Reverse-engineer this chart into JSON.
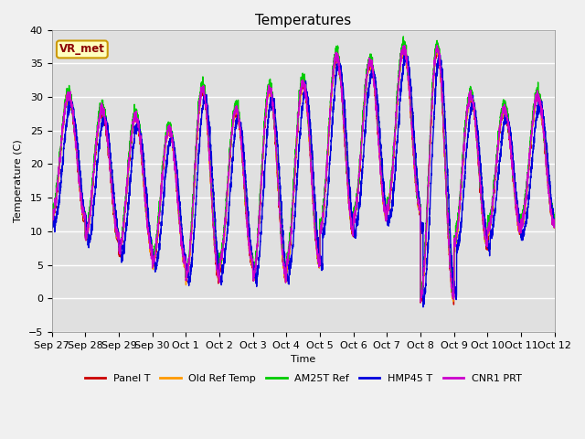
{
  "title": "Temperatures",
  "xlabel": "Time",
  "ylabel": "Temperature (C)",
  "ylim": [
    -5,
    40
  ],
  "annotation": "VR_met",
  "fig_bg": "#f0f0f0",
  "plot_bg": "#e0e0e0",
  "series_names": [
    "Panel T",
    "Old Ref Temp",
    "AM25T Ref",
    "HMP45 T",
    "CNR1 PRT"
  ],
  "series_colors": [
    "#cc0000",
    "#ff9900",
    "#00cc00",
    "#0000dd",
    "#cc00cc"
  ],
  "series_lw": [
    1.0,
    1.0,
    1.0,
    1.0,
    1.0
  ],
  "x_tick_labels": [
    "Sep 27",
    "Sep 28",
    "Sep 29",
    "Sep 30",
    "Oct 1",
    "Oct 2",
    "Oct 3",
    "Oct 4",
    "Oct 5",
    "Oct 6",
    "Oct 7",
    "Oct 8",
    "Oct 9",
    "Oct 10",
    "Oct 11",
    "Oct 12"
  ],
  "yticks": [
    -5,
    0,
    5,
    10,
    15,
    20,
    25,
    30,
    35,
    40
  ],
  "day_peaks": [
    30,
    28,
    27,
    25,
    31,
    28,
    31,
    32,
    36,
    35,
    37,
    37,
    30,
    28,
    30
  ],
  "day_mins": [
    12,
    9,
    7,
    5,
    3,
    5,
    3,
    5,
    10,
    12,
    13,
    0,
    8,
    10,
    11
  ],
  "title_fontsize": 11,
  "label_fontsize": 8,
  "tick_fontsize": 8
}
